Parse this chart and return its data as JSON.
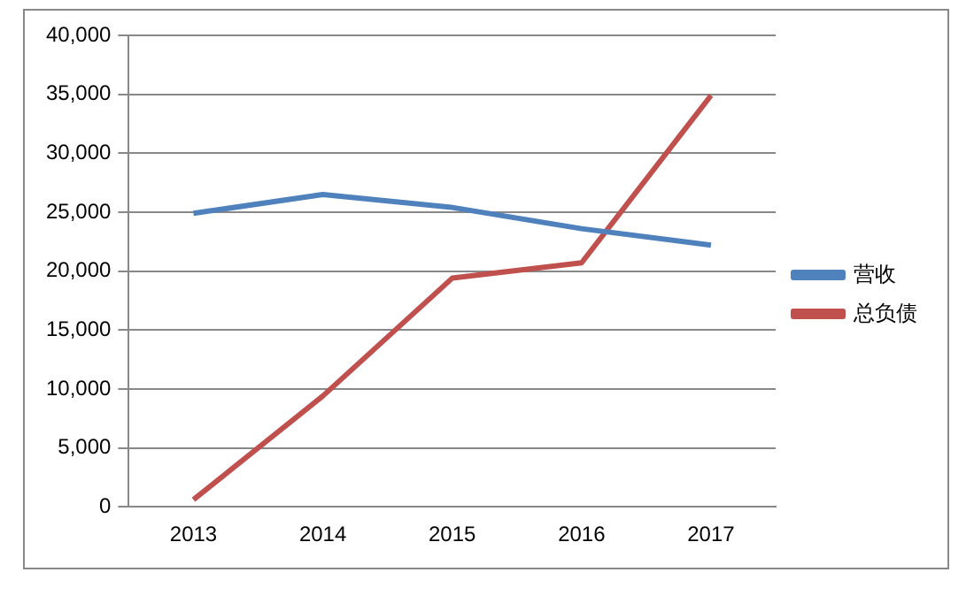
{
  "chart_data": {
    "type": "line",
    "categories": [
      "2013",
      "2014",
      "2015",
      "2016",
      "2017"
    ],
    "series": [
      {
        "name": "营收",
        "color": "#4f81bd",
        "values": [
          24900,
          26500,
          25400,
          23600,
          22200
        ]
      },
      {
        "name": "总负债",
        "color": "#c0504d",
        "values": [
          600,
          9400,
          19400,
          20700,
          34900
        ]
      }
    ],
    "ylim": [
      0,
      40000
    ],
    "yticks": [
      0,
      {
        "value": 5000,
        "label": "5,000"
      },
      {
        "value": 10000,
        "label": "10,000"
      },
      {
        "value": 15000,
        "label": "15,000"
      },
      {
        "value": 20000,
        "label": "20,000"
      },
      {
        "value": 25000,
        "label": "25,000"
      },
      {
        "value": 30000,
        "label": "30,000"
      },
      {
        "value": 35000,
        "label": "35,000"
      },
      {
        "value": 40000,
        "label": "40,000"
      }
    ],
    "grid": "y",
    "legend": "right",
    "marker": "none",
    "line_style": "solid"
  }
}
